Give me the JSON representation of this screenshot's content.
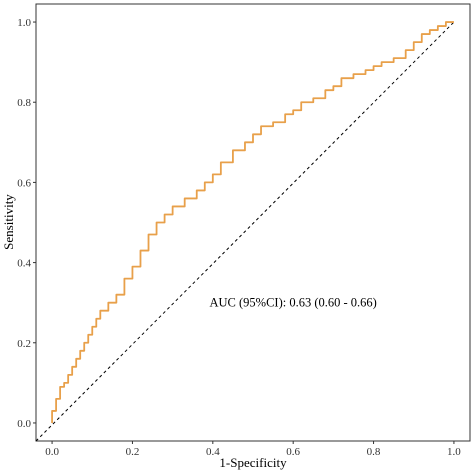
{
  "chart_data": {
    "type": "line",
    "title": "",
    "xlabel": "1-Specificity",
    "ylabel": "Sensitivity",
    "xlim": [
      -0.04,
      1.04
    ],
    "ylim": [
      -0.045,
      1.045
    ],
    "x_ticks": [
      "0.0",
      "0.2",
      "0.4",
      "0.6",
      "0.8",
      "1.0"
    ],
    "y_ticks": [
      "0.0",
      "0.2",
      "0.4",
      "0.6",
      "0.8",
      "1.0"
    ],
    "grid": false,
    "legend": "none",
    "annotation": "AUC (95%CI): 0.63 (0.60 - 0.66)",
    "annotation_pos": [
      0.6,
      0.3
    ],
    "series": [
      {
        "color": "#e8a04a",
        "x": [
          0.0,
          0.01,
          0.02,
          0.03,
          0.04,
          0.05,
          0.06,
          0.07,
          0.08,
          0.09,
          0.1,
          0.11,
          0.12,
          0.14,
          0.16,
          0.18,
          0.2,
          0.22,
          0.24,
          0.26,
          0.28,
          0.3,
          0.33,
          0.36,
          0.38,
          0.4,
          0.42,
          0.45,
          0.48,
          0.5,
          0.52,
          0.55,
          0.58,
          0.6,
          0.62,
          0.65,
          0.68,
          0.7,
          0.72,
          0.75,
          0.78,
          0.8,
          0.82,
          0.85,
          0.88,
          0.9,
          0.92,
          0.94,
          0.96,
          0.98,
          1.0
        ],
        "y": [
          0.0,
          0.03,
          0.06,
          0.09,
          0.1,
          0.12,
          0.14,
          0.16,
          0.18,
          0.2,
          0.22,
          0.24,
          0.26,
          0.28,
          0.3,
          0.32,
          0.36,
          0.39,
          0.43,
          0.47,
          0.5,
          0.52,
          0.54,
          0.56,
          0.58,
          0.6,
          0.62,
          0.65,
          0.68,
          0.7,
          0.72,
          0.74,
          0.75,
          0.77,
          0.78,
          0.8,
          0.81,
          0.83,
          0.84,
          0.86,
          0.87,
          0.88,
          0.89,
          0.9,
          0.91,
          0.93,
          0.95,
          0.97,
          0.98,
          0.99,
          1.0
        ]
      }
    ],
    "reference_line": {
      "x": [
        0,
        1
      ],
      "y": [
        0,
        1
      ],
      "style": "dashed",
      "color": "#000000"
    }
  }
}
